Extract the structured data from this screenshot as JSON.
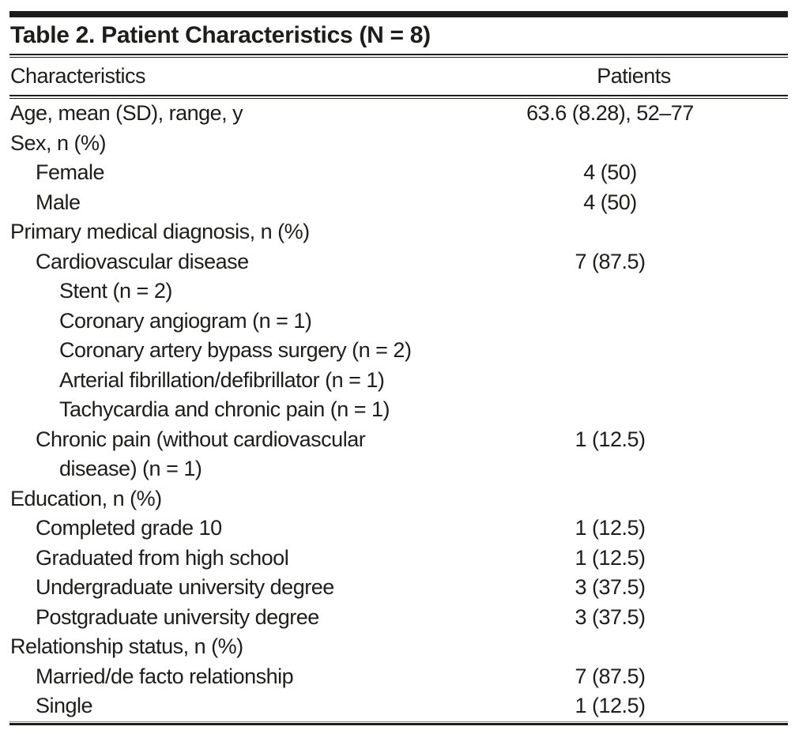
{
  "page": {
    "background_color": "#ffffff",
    "text_color": "#1d1d1b",
    "rule_color": "#1d1d1b"
  },
  "table": {
    "title": "Table 2. Patient Characteristics (N = 8)",
    "columns": [
      "Characteristics",
      "Patients"
    ],
    "rows": [
      {
        "label": "Age, mean (SD), range, y",
        "indent": 0,
        "value": "63.6 (8.28), 52–77"
      },
      {
        "label": "Sex, n (%)",
        "indent": 0,
        "value": ""
      },
      {
        "label": "Female",
        "indent": 1,
        "value": "4 (50)"
      },
      {
        "label": "Male",
        "indent": 1,
        "value": "4 (50)"
      },
      {
        "label": "Primary medical diagnosis, n (%)",
        "indent": 0,
        "value": ""
      },
      {
        "label": "Cardiovascular disease",
        "indent": 1,
        "value": "7 (87.5)"
      },
      {
        "label": "Stent (n = 2)",
        "indent": 2,
        "value": ""
      },
      {
        "label": "Coronary angiogram (n = 1)",
        "indent": 2,
        "value": ""
      },
      {
        "label": "Coronary artery bypass surgery (n = 2)",
        "indent": 2,
        "value": ""
      },
      {
        "label": "Arterial fibrillation/defibrillator (n = 1)",
        "indent": 2,
        "value": ""
      },
      {
        "label": "Tachycardia and chronic pain (n = 1)",
        "indent": 2,
        "value": ""
      },
      {
        "label": "Chronic pain (without cardiovascular",
        "indent": 1,
        "value": "1 (12.5)"
      },
      {
        "label": "disease) (n = 1)",
        "indent": 2,
        "value": ""
      },
      {
        "label": "Education, n (%)",
        "indent": 0,
        "value": ""
      },
      {
        "label": "Completed grade 10",
        "indent": 1,
        "value": "1 (12.5)"
      },
      {
        "label": "Graduated from high school",
        "indent": 1,
        "value": "1 (12.5)"
      },
      {
        "label": "Undergraduate university degree",
        "indent": 1,
        "value": "3 (37.5)"
      },
      {
        "label": "Postgraduate university degree",
        "indent": 1,
        "value": "3 (37.5)"
      },
      {
        "label": "Relationship status, n (%)",
        "indent": 0,
        "value": ""
      },
      {
        "label": "Married/de facto relationship",
        "indent": 1,
        "value": "7 (87.5)"
      },
      {
        "label": "Single",
        "indent": 1,
        "value": "1 (12.5)"
      }
    ]
  }
}
